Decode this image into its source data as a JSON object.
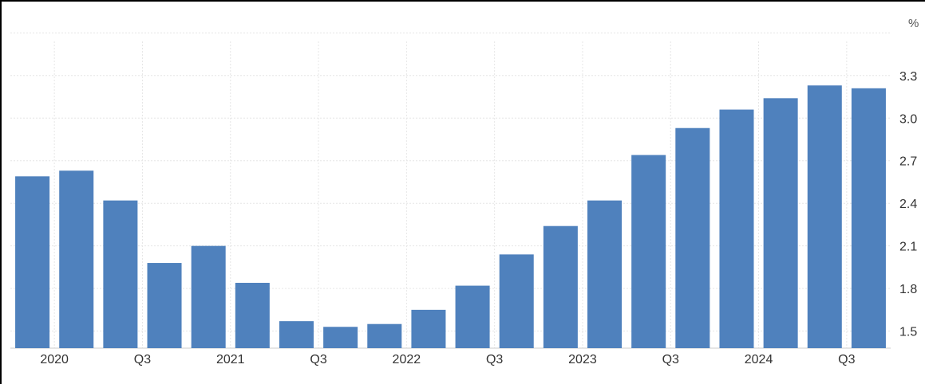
{
  "chart_data": {
    "type": "bar",
    "unit_label": "%",
    "x_tick_labels": [
      "2020",
      "Q3",
      "2021",
      "Q3",
      "2022",
      "Q3",
      "2023",
      "Q3",
      "2024",
      "Q3"
    ],
    "y_ticks": [
      1.5,
      1.8,
      2.1,
      2.4,
      2.7,
      3.0,
      3.3
    ],
    "y_tick_labels": [
      "1.5",
      "1.8",
      "2.1",
      "2.4",
      "2.7",
      "3.0",
      "3.3"
    ],
    "ylim": [
      1.38,
      3.54
    ],
    "values": [
      2.59,
      2.63,
      2.42,
      1.98,
      2.1,
      1.84,
      1.57,
      1.53,
      1.55,
      1.65,
      1.82,
      2.04,
      2.24,
      2.42,
      2.74,
      2.93,
      3.06,
      3.14,
      3.23,
      3.21
    ],
    "bar_color": "#4f81bd",
    "grid": true,
    "y_axis_position": "right"
  }
}
